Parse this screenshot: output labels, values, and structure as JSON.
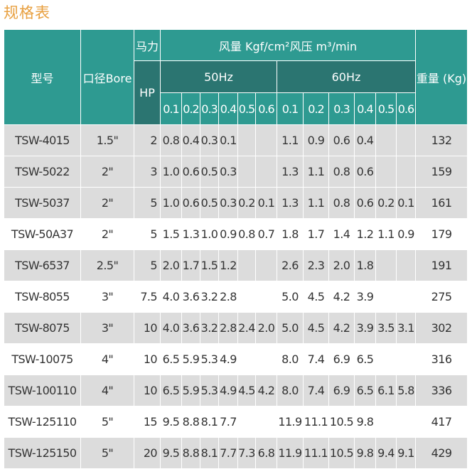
{
  "title": "规格表",
  "header": {
    "model": "型号",
    "bore": "口径Bore",
    "power": "马力",
    "hp": "HP",
    "airflow": "风量 Kgf/cm²风压 m³/min",
    "hz50": "50Hz",
    "hz60": "60Hz",
    "weight": "重量 (Kg)",
    "pressures50": [
      "0.1",
      "0.2",
      "0.3",
      "0.4",
      "0.5",
      "0.6"
    ],
    "pressures60": [
      "0.1",
      "0.2",
      "0.3",
      "0.4",
      "0.5",
      "0.6"
    ]
  },
  "colors": {
    "header": "#2e9a91",
    "header_dark": "#2b7571",
    "row_gray": "#dcdcdc",
    "title": "#e8a040"
  },
  "rows": [
    {
      "model": "TSW-4015",
      "bore": "1.5\"",
      "hp": "2",
      "f50": [
        "0.8",
        "0.4",
        "0.3",
        "0.1",
        "",
        ""
      ],
      "f60": [
        "1.1",
        "0.9",
        "0.6",
        "0.4",
        "",
        ""
      ],
      "weight": "132",
      "bg": "gray"
    },
    {
      "model": "TSW-5022",
      "bore": "2\"",
      "hp": "3",
      "f50": [
        "1.0",
        "0.6",
        "0.5",
        "0.3",
        "",
        ""
      ],
      "f60": [
        "1.3",
        "1.1",
        "0.8",
        "0.6",
        "",
        ""
      ],
      "weight": "159",
      "bg": "gray"
    },
    {
      "model": "TSW-5037",
      "bore": "2\"",
      "hp": "5",
      "f50": [
        "1.0",
        "0.6",
        "0.5",
        "0.3",
        "0.2",
        "0.1"
      ],
      "f60": [
        "1.3",
        "1.1",
        "0.8",
        "0.6",
        "0.2",
        "0.1"
      ],
      "weight": "161",
      "bg": "gray"
    },
    {
      "model": "TSW-50A37",
      "bore": "2\"",
      "hp": "5",
      "f50": [
        "1.5",
        "1.3",
        "1.0",
        "0.9",
        "0.8",
        "0.7"
      ],
      "f60": [
        "1.8",
        "1.7",
        "1.4",
        "1.2",
        "1.1",
        "0.9"
      ],
      "weight": "179",
      "bg": "white"
    },
    {
      "model": "TSW-6537",
      "bore": "2.5\"",
      "hp": "5",
      "f50": [
        "2.0",
        "1.7",
        "1.5",
        "1.2",
        "",
        ""
      ],
      "f60": [
        "2.6",
        "2.3",
        "2.0",
        "1.8",
        "",
        ""
      ],
      "weight": "191",
      "bg": "gray"
    },
    {
      "model": "TSW-8055",
      "bore": "3\"",
      "hp": "7.5",
      "f50": [
        "4.0",
        "3.6",
        "3.2",
        "2.8",
        "",
        ""
      ],
      "f60": [
        "5.0",
        "4.5",
        "4.2",
        "3.9",
        "",
        ""
      ],
      "weight": "275",
      "bg": "white"
    },
    {
      "model": "TSW-8075",
      "bore": "3\"",
      "hp": "10",
      "f50": [
        "4.0",
        "3.6",
        "3.2",
        "2.8",
        "2.4",
        "2.0"
      ],
      "f60": [
        "5.0",
        "4.5",
        "4.2",
        "3.9",
        "3.5",
        "3.1"
      ],
      "weight": "302",
      "bg": "gray"
    },
    {
      "model": "TSW-10075",
      "bore": "4\"",
      "hp": "10",
      "f50": [
        "6.5",
        "5.9",
        "5.3",
        "4.9",
        "",
        ""
      ],
      "f60": [
        "8.0",
        "7.4",
        "6.9",
        "6.5",
        "",
        ""
      ],
      "weight": "316",
      "bg": "white"
    },
    {
      "model": "TSW-100110",
      "bore": "4\"",
      "hp": "10",
      "f50": [
        "6.5",
        "5.9",
        "5.3",
        "4.9",
        "4.5",
        "4.2"
      ],
      "f60": [
        "8.0",
        "7.4",
        "6.9",
        "6.5",
        "6.1",
        "5.8"
      ],
      "weight": "336",
      "bg": "gray"
    },
    {
      "model": "TSW-125110",
      "bore": "5\"",
      "hp": "15",
      "f50": [
        "9.5",
        "8.8",
        "8.1",
        "7.7",
        "",
        ""
      ],
      "f60": [
        "11.9",
        "11.1",
        "10.5",
        "9.8",
        "",
        ""
      ],
      "weight": "417",
      "bg": "white"
    },
    {
      "model": "TSW-125150",
      "bore": "5\"",
      "hp": "20",
      "f50": [
        "9.5",
        "8.8",
        "8.1",
        "7.7",
        "7.3",
        "6.8"
      ],
      "f60": [
        "11.9",
        "11.1",
        "10.5",
        "9.8",
        "9.4",
        "9.1"
      ],
      "weight": "429",
      "bg": "gray"
    }
  ]
}
